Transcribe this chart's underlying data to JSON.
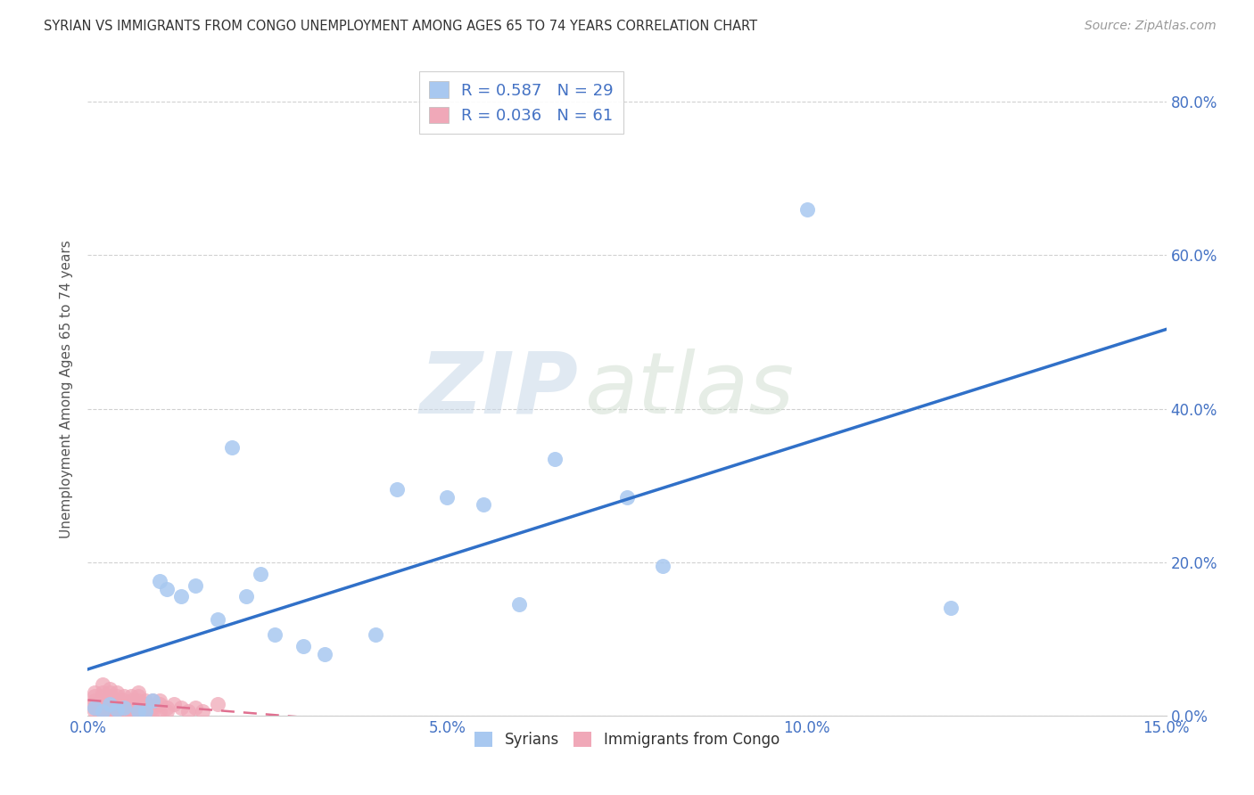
{
  "title": "SYRIAN VS IMMIGRANTS FROM CONGO UNEMPLOYMENT AMONG AGES 65 TO 74 YEARS CORRELATION CHART",
  "source": "Source: ZipAtlas.com",
  "ylabel_label": "Unemployment Among Ages 65 to 74 years",
  "xlim": [
    0.0,
    0.15
  ],
  "ylim": [
    0.0,
    0.85
  ],
  "syrian_R": 0.587,
  "syrian_N": 29,
  "congo_R": 0.036,
  "congo_N": 61,
  "syrian_color": "#a8c8f0",
  "congo_color": "#f0a8b8",
  "trend_syrian_color": "#3070c8",
  "trend_congo_color": "#e07090",
  "syrians_x": [
    0.001,
    0.002,
    0.003,
    0.004,
    0.005,
    0.007,
    0.008,
    0.009,
    0.01,
    0.011,
    0.013,
    0.015,
    0.018,
    0.02,
    0.022,
    0.024,
    0.026,
    0.03,
    0.033,
    0.04,
    0.043,
    0.05,
    0.055,
    0.06,
    0.065,
    0.075,
    0.08,
    0.1,
    0.12
  ],
  "syrians_y": [
    0.01,
    0.005,
    0.015,
    0.008,
    0.01,
    0.005,
    0.005,
    0.02,
    0.175,
    0.165,
    0.155,
    0.17,
    0.125,
    0.35,
    0.155,
    0.185,
    0.105,
    0.09,
    0.08,
    0.105,
    0.295,
    0.285,
    0.275,
    0.145,
    0.335,
    0.285,
    0.195,
    0.66,
    0.14
  ],
  "congo_x": [
    0.001,
    0.001,
    0.001,
    0.001,
    0.001,
    0.001,
    0.002,
    0.002,
    0.002,
    0.002,
    0.002,
    0.002,
    0.002,
    0.003,
    0.003,
    0.003,
    0.003,
    0.003,
    0.003,
    0.003,
    0.003,
    0.004,
    0.004,
    0.004,
    0.004,
    0.004,
    0.004,
    0.005,
    0.005,
    0.005,
    0.005,
    0.005,
    0.006,
    0.006,
    0.006,
    0.006,
    0.006,
    0.007,
    0.007,
    0.007,
    0.007,
    0.007,
    0.007,
    0.008,
    0.008,
    0.008,
    0.008,
    0.009,
    0.009,
    0.009,
    0.01,
    0.01,
    0.01,
    0.011,
    0.011,
    0.012,
    0.013,
    0.014,
    0.015,
    0.016,
    0.018
  ],
  "congo_y": [
    0.02,
    0.01,
    0.005,
    0.015,
    0.025,
    0.03,
    0.01,
    0.03,
    0.04,
    0.005,
    0.015,
    0.02,
    0.025,
    0.01,
    0.025,
    0.005,
    0.02,
    0.015,
    0.03,
    0.008,
    0.035,
    0.01,
    0.015,
    0.02,
    0.005,
    0.025,
    0.03,
    0.005,
    0.01,
    0.025,
    0.015,
    0.02,
    0.005,
    0.02,
    0.01,
    0.015,
    0.025,
    0.005,
    0.015,
    0.025,
    0.01,
    0.02,
    0.03,
    0.01,
    0.005,
    0.02,
    0.015,
    0.005,
    0.01,
    0.02,
    0.005,
    0.015,
    0.02,
    0.005,
    0.01,
    0.015,
    0.01,
    0.005,
    0.01,
    0.005,
    0.015
  ],
  "background_color": "#ffffff",
  "xtick_vals": [
    0.0,
    0.05,
    0.1,
    0.15
  ],
  "xtick_labels": [
    "0.0%",
    "5.0%",
    "10.0%",
    "15.0%"
  ],
  "ytick_vals": [
    0.0,
    0.2,
    0.4,
    0.6,
    0.8
  ],
  "ytick_labels": [
    "0.0%",
    "20.0%",
    "40.0%",
    "60.0%",
    "80.0%"
  ],
  "tick_color": "#4472c4",
  "grid_color": "#cccccc",
  "title_color": "#333333",
  "source_color": "#999999",
  "ylabel_color": "#555555"
}
